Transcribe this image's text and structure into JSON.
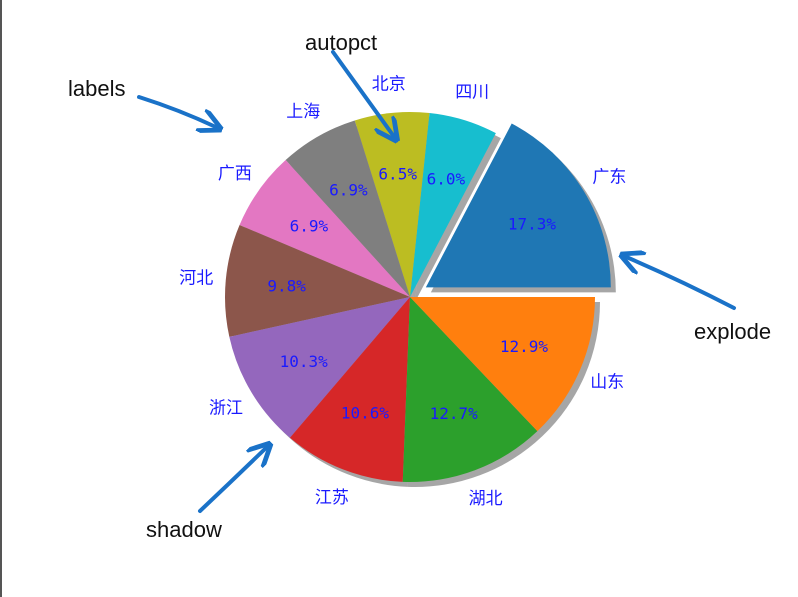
{
  "chart_data": {
    "type": "pie",
    "categories": [
      "广东",
      "四川",
      "北京",
      "上海",
      "广西",
      "河北",
      "浙江",
      "江苏",
      "湖北",
      "山东"
    ],
    "values": [
      17.3,
      6.0,
      6.5,
      6.9,
      6.9,
      9.8,
      10.3,
      10.6,
      12.7,
      12.9
    ],
    "percent_labels": [
      "17.3%",
      "6.0%",
      "6.5%",
      "6.9%",
      "6.9%",
      "9.8%",
      "10.3%",
      "10.6%",
      "12.7%",
      "12.9%"
    ],
    "colors": [
      "#1f77b4",
      "#17becf",
      "#bcbd22",
      "#7f7f7f",
      "#e377c2",
      "#8c564b",
      "#9467bd",
      "#d62728",
      "#2ca02c",
      "#ff7f0e"
    ],
    "explode": [
      0.1,
      0,
      0,
      0,
      0,
      0,
      0,
      0,
      0,
      0
    ],
    "shadow": true,
    "label_color": "#1a1aff",
    "annotations": [
      "labels",
      "autopct",
      "explode",
      "shadow"
    ],
    "arrow_color": "#1a72c8"
  }
}
